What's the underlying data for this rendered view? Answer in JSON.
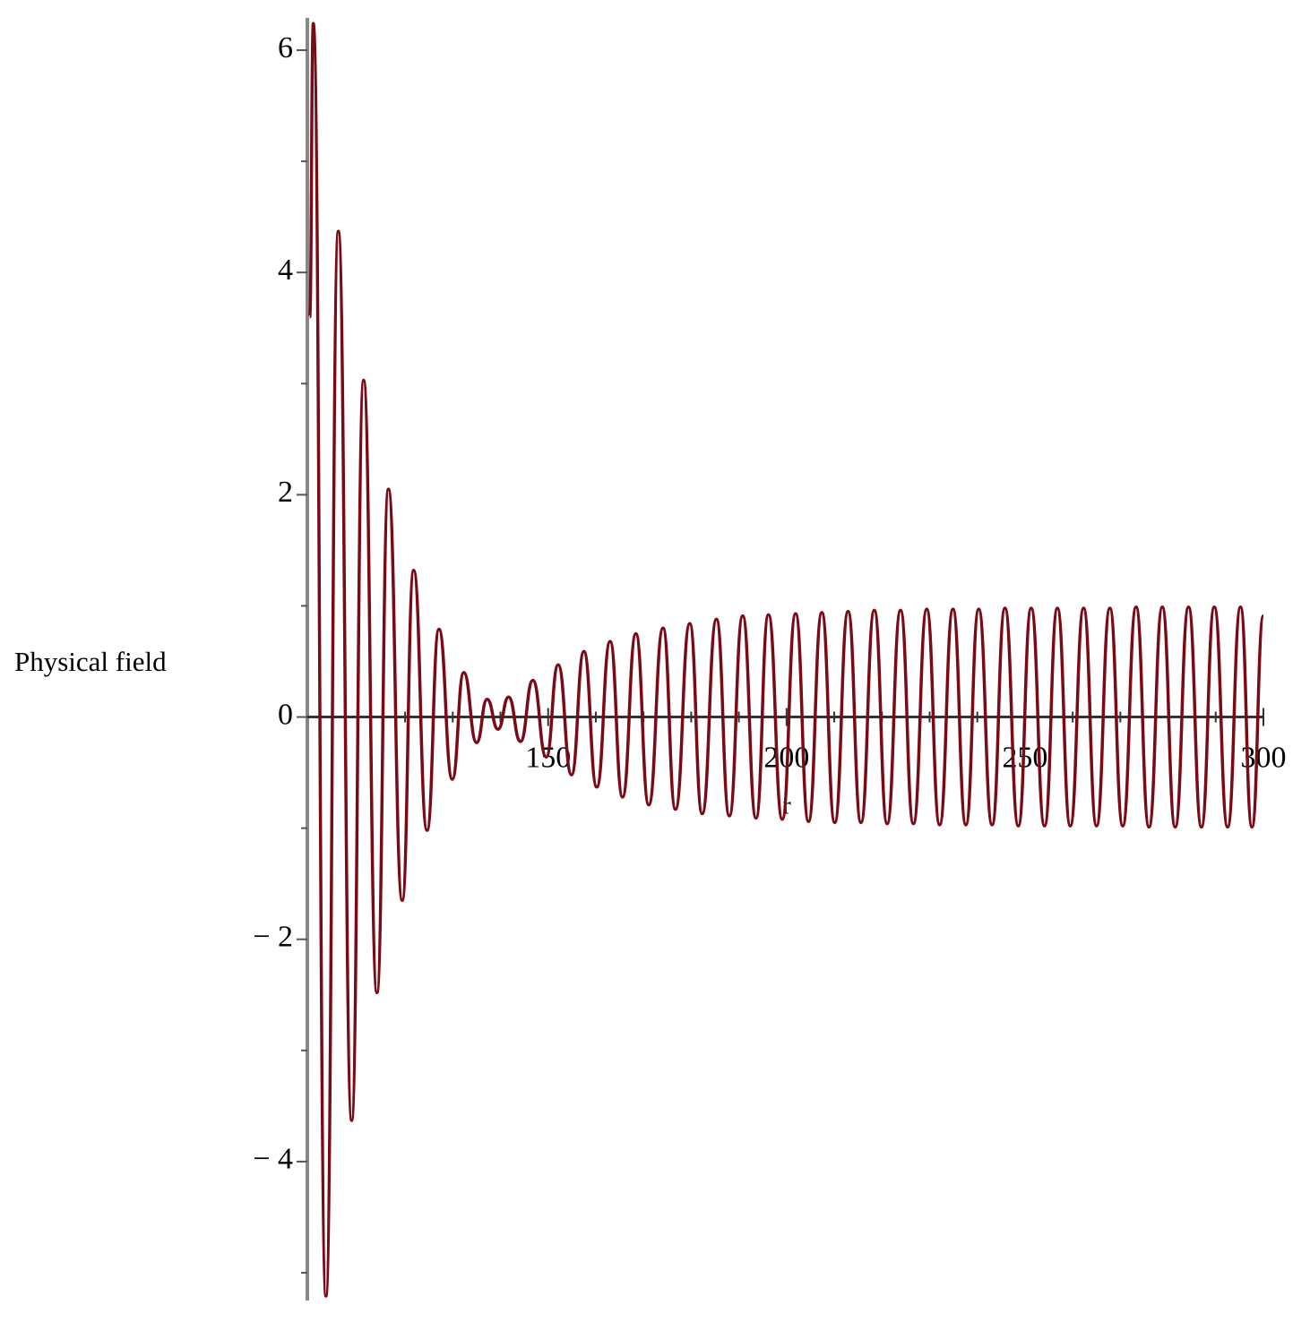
{
  "chart_data": {
    "type": "line",
    "y_label": "Physical field",
    "x_label": "r",
    "xlim": [
      99.5,
      300
    ],
    "ylim": [
      -5.25,
      6.25
    ],
    "xticks": [
      150,
      200,
      250,
      300
    ],
    "x_minor_ticks": [
      110,
      120,
      130,
      140,
      160,
      170,
      180,
      190,
      210,
      220,
      230,
      240,
      260,
      270,
      280,
      290
    ],
    "yticks": [
      6,
      4,
      2,
      0,
      {
        "value": -2,
        "label": "− 2"
      },
      {
        "value": -4,
        "label": "− 4"
      }
    ],
    "y_minor_ticks": [
      5,
      3,
      1,
      -1,
      -3,
      -5
    ],
    "series": [
      {
        "color": "#7a0a16",
        "x": [
          100.0,
          100.75,
          103.4,
          106.0,
          108.8,
          111.3,
          114.1,
          116.5,
          119.4,
          121.8,
          124.6,
          127.1,
          129.9,
          132.3,
          135.0,
          137.2,
          139.5,
          141.7,
          144.2,
          146.8,
          149.6,
          152.1,
          154.9,
          157.5,
          160.2,
          163.0,
          165.6,
          168.4,
          171.1,
          174.1,
          176.7,
          179.7,
          182.3,
          185.3,
          188.0,
          190.8,
          193.6,
          196.2,
          199.1,
          201.9,
          204.6,
          207.4,
          210.1,
          212.9,
          215.6,
          218.4,
          221.1,
          223.9,
          226.6,
          229.4,
          232.1,
          234.9,
          237.6,
          240.3,
          243.1,
          245.8,
          248.6,
          251.3,
          254.1,
          256.8,
          259.5,
          262.3,
          265.0,
          267.8,
          270.5,
          273.3,
          276.0,
          278.8,
          281.5,
          284.3,
          287.0,
          289.7,
          292.5,
          295.2,
          297.6,
          300.0
        ],
        "values": [
          3.6,
          6.24,
          -5.21,
          4.37,
          -3.63,
          3.03,
          -2.48,
          2.05,
          -1.65,
          1.32,
          -1.02,
          0.79,
          -0.56,
          0.4,
          -0.23,
          0.16,
          -0.11,
          0.18,
          -0.22,
          0.33,
          -0.36,
          0.47,
          -0.52,
          0.59,
          -0.63,
          0.68,
          -0.72,
          0.75,
          -0.79,
          0.8,
          -0.83,
          0.84,
          -0.87,
          0.88,
          -0.89,
          0.91,
          -0.91,
          0.92,
          -0.92,
          0.93,
          -0.94,
          0.94,
          -0.95,
          0.95,
          -0.95,
          0.96,
          -0.96,
          0.96,
          -0.96,
          0.97,
          -0.97,
          0.97,
          -0.97,
          0.97,
          -0.97,
          0.98,
          -0.98,
          0.98,
          -0.98,
          0.98,
          -0.98,
          0.98,
          -0.98,
          0.98,
          -0.98,
          0.99,
          -0.99,
          0.99,
          -0.99,
          0.99,
          -0.99,
          0.99,
          -0.99,
          0.99,
          -0.99,
          0.91
        ]
      }
    ]
  }
}
